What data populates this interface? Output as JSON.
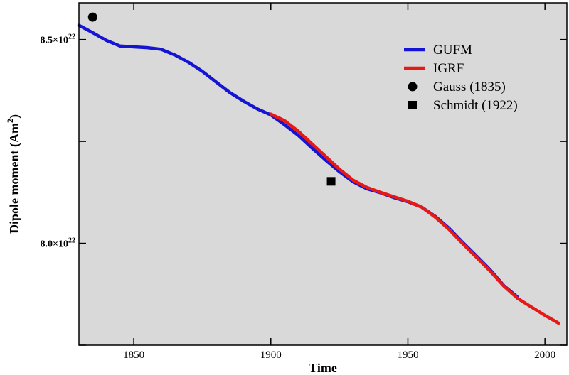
{
  "chart_data": {
    "type": "line",
    "xlabel": "Time",
    "ylabel": "Dipole moment (Am",
    "ylabel_sup": "2",
    "ylabel_close": ")",
    "xlim": [
      1830,
      2008
    ],
    "ylim": [
      7.75,
      8.59
    ],
    "x_ticks": [
      {
        "value": 1850,
        "label": "1850"
      },
      {
        "value": 1900,
        "label": "1900"
      },
      {
        "value": 1950,
        "label": "1950"
      },
      {
        "value": 2000,
        "label": "2000"
      }
    ],
    "y_ticks_major": [
      {
        "value": 8.5,
        "mantissa": "8.5",
        "times": "×10",
        "exp": "22"
      },
      {
        "value": 8.0,
        "mantissa": "8.0",
        "times": "×10",
        "exp": "22"
      }
    ],
    "y_ticks_minor": [
      8.25,
      7.75
    ],
    "y_unit_multiplier": "1e22",
    "grid": false,
    "background_color": "#d9d9d9",
    "legend_position": "top-right",
    "series": [
      {
        "name": "GUFM",
        "kind": "line",
        "color": "#1414d2",
        "x": [
          1830,
          1835,
          1840,
          1845,
          1850,
          1855,
          1860,
          1865,
          1870,
          1875,
          1880,
          1885,
          1890,
          1895,
          1900,
          1905,
          1910,
          1915,
          1920,
          1925,
          1930,
          1935,
          1940,
          1945,
          1950,
          1955,
          1960,
          1965,
          1970,
          1975,
          1980,
          1985,
          1990
        ],
        "values": [
          8.535,
          8.517,
          8.498,
          8.484,
          8.482,
          8.48,
          8.476,
          8.462,
          8.444,
          8.422,
          8.396,
          8.37,
          8.349,
          8.33,
          8.315,
          8.291,
          8.265,
          8.234,
          8.204,
          8.176,
          8.151,
          8.134,
          8.124,
          8.112,
          8.102,
          8.089,
          8.066,
          8.037,
          8.002,
          7.969,
          7.935,
          7.896,
          7.868
        ]
      },
      {
        "name": "IGRF",
        "kind": "line",
        "color": "#e61919",
        "x": [
          1900,
          1905,
          1910,
          1915,
          1920,
          1925,
          1930,
          1935,
          1940,
          1945,
          1950,
          1955,
          1960,
          1965,
          1970,
          1975,
          1980,
          1985,
          1990,
          1995,
          2000,
          2005
        ],
        "values": [
          8.317,
          8.301,
          8.275,
          8.244,
          8.213,
          8.182,
          8.155,
          8.137,
          8.125,
          8.114,
          8.103,
          8.089,
          8.064,
          8.034,
          7.999,
          7.966,
          7.932,
          7.895,
          7.865,
          7.844,
          7.823,
          7.804
        ]
      },
      {
        "name": "Gauss (1835)",
        "kind": "point",
        "marker": "circle",
        "color": "#000000",
        "x": [
          1835
        ],
        "values": [
          8.555
        ]
      },
      {
        "name": "Schmidt (1922)",
        "kind": "point",
        "marker": "square",
        "color": "#000000",
        "x": [
          1922
        ],
        "values": [
          8.152
        ]
      }
    ]
  }
}
